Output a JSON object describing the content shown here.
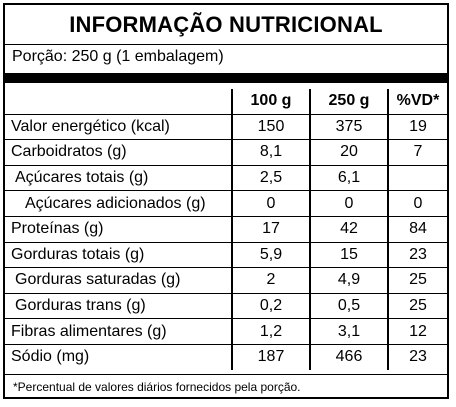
{
  "title": "INFORMAÇÃO NUTRICIONAL",
  "portion": "Porção: 250 g (1 embalagem)",
  "headers": [
    "",
    "100 g",
    "250 g",
    "%VD*"
  ],
  "rows": [
    {
      "name": "Valor energético (kcal)",
      "v100": "150",
      "v250": "375",
      "vd": "19"
    },
    {
      "name": "Carboidratos (g)",
      "v100": "8,1",
      "v250": "20",
      "vd": "7"
    },
    {
      "name": "Açúcares totais (g)",
      "v100": "2,5",
      "v250": "6,1",
      "vd": ""
    },
    {
      "name": "Açúcares adicionados (g)",
      "v100": "0",
      "v250": "0",
      "vd": "0"
    },
    {
      "name": "Proteínas (g)",
      "v100": "17",
      "v250": "42",
      "vd": "84"
    },
    {
      "name": "Gorduras totais (g)",
      "v100": "5,9",
      "v250": "15",
      "vd": "23"
    },
    {
      "name": "Gorduras saturadas (g)",
      "v100": "2",
      "v250": "4,9",
      "vd": "25"
    },
    {
      "name": "Gorduras trans (g)",
      "v100": "0,2",
      "v250": "0,5",
      "vd": "25"
    },
    {
      "name": "Fibras alimentares (g)",
      "v100": "1,2",
      "v250": "3,1",
      "vd": "12"
    },
    {
      "name": "Sódio (mg)",
      "v100": "187",
      "v250": "466",
      "vd": "23"
    }
  ],
  "footnote": "*Percentual de valores diários fornecidos pela porção."
}
